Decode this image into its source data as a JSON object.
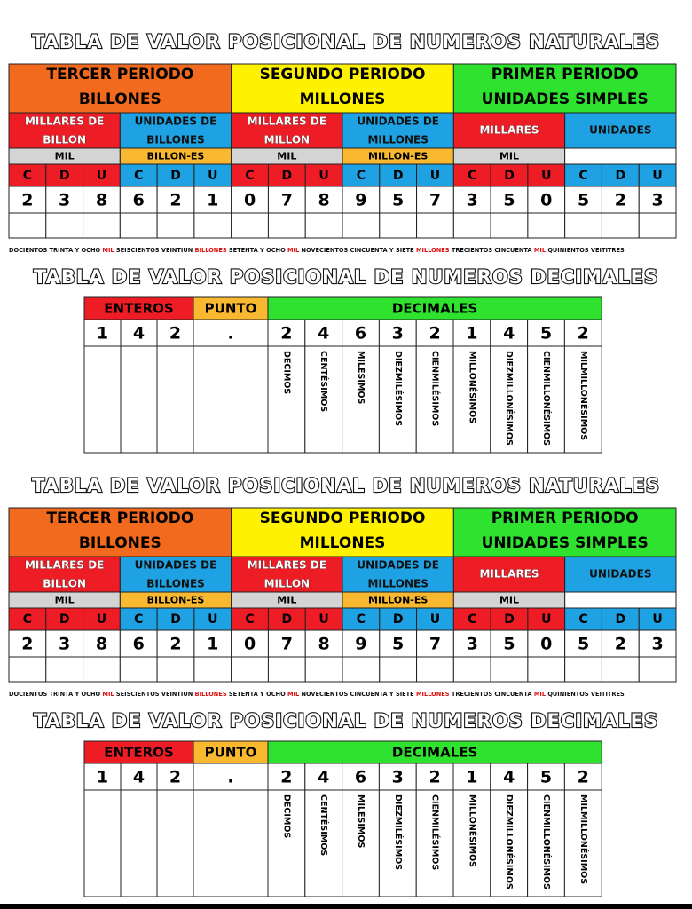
{
  "copies": [
    {
      "natural": {
        "title": "TABLA DE VALOR POSICIONAL DE NUMEROS NATURALES",
        "periods": [
          {
            "name": "TERCER PERIODO",
            "sub": "BILLONES"
          },
          {
            "name": "SEGUNDO PERIODO",
            "sub": "MILLONES"
          },
          {
            "name": "PRIMER PERIODO",
            "sub": "UNIDADES SIMPLES"
          }
        ],
        "classes": [
          [
            "MILLARES DE",
            "BILLON"
          ],
          [
            "UNIDADES DE",
            "BILLONES"
          ],
          [
            "MILLARES DE",
            "MILLON"
          ],
          [
            "UNIDADES DE",
            "MILLONES"
          ],
          [
            "MILLARES"
          ],
          [
            "UNIDADES"
          ]
        ],
        "names": [
          "MIL",
          "BILLON-ES",
          "MIL",
          "MILLON-ES",
          "MIL"
        ],
        "place_letters": [
          "C",
          "D",
          "U",
          "C",
          "D",
          "U",
          "C",
          "D",
          "U",
          "C",
          "D",
          "U",
          "C",
          "D",
          "U",
          "C",
          "D",
          "U"
        ],
        "digits": [
          2,
          3,
          8,
          6,
          2,
          1,
          0,
          7,
          8,
          9,
          5,
          7,
          3,
          5,
          0,
          5,
          2,
          3
        ],
        "sentence": [
          "DOCIENTOS TRINTA Y OCHO ",
          "MIL",
          " SEISCIENTOS VEINTIUN ",
          "BILLONES",
          " SETENTA Y OCHO ",
          "MIL",
          " NOVECIENTOS CINCUENTA Y SIETE ",
          "MILLONES",
          " TRECIENTOS CINCUENTA ",
          "MIL",
          " QUINIENTOS VEITITRES"
        ]
      },
      "decimal": {
        "title": "TABLA DE VALOR POSICIONAL DE NUMEROS DECIMALES",
        "headers": [
          "ENTEROS",
          "PUNTO",
          "DECIMALES"
        ],
        "integer_digits": [
          1,
          4,
          2
        ],
        "point": ".",
        "decimal_digits": [
          2,
          4,
          6,
          3,
          2,
          1,
          4,
          5,
          2
        ],
        "decimal_names": [
          "DECIMOS",
          "CENTÉSIMOS",
          "MILÉSIMOS",
          "DIEZMILÉSIMOS",
          "CIENMILÉSIMOS",
          "MILLONÉSIMOS",
          "DIEZMILLONÉSIMOS",
          "CIENMILLONÉSIMOS",
          "MILMILLONÉSIMOS"
        ]
      }
    },
    {
      "natural": {
        "title": "TABLA DE VALOR POSICIONAL DE NUMEROS NATURALES",
        "periods": [
          {
            "name": "TERCER PERIODO",
            "sub": "BILLONES"
          },
          {
            "name": "SEGUNDO PERIODO",
            "sub": "MILLONES"
          },
          {
            "name": "PRIMER PERIODO",
            "sub": "UNIDADES SIMPLES"
          }
        ],
        "classes": [
          [
            "MILLARES DE",
            "BILLON"
          ],
          [
            "UNIDADES DE",
            "BILLONES"
          ],
          [
            "MILLARES DE",
            "MILLON"
          ],
          [
            "UNIDADES DE",
            "MILLONES"
          ],
          [
            "MILLARES"
          ],
          [
            "UNIDADES"
          ]
        ],
        "names": [
          "MIL",
          "BILLON-ES",
          "MIL",
          "MILLON-ES",
          "MIL"
        ],
        "place_letters": [
          "C",
          "D",
          "U",
          "C",
          "D",
          "U",
          "C",
          "D",
          "U",
          "C",
          "D",
          "U",
          "C",
          "D",
          "U",
          "C",
          "D",
          "U"
        ],
        "digits": [
          2,
          3,
          8,
          6,
          2,
          1,
          0,
          7,
          8,
          9,
          5,
          7,
          3,
          5,
          0,
          5,
          2,
          3
        ],
        "sentence": [
          "DOCIENTOS TRINTA Y OCHO ",
          "MIL",
          " SEISCIENTOS VEINTIUN ",
          "BILLONES",
          " SETENTA Y OCHO ",
          "MIL",
          " NOVECIENTOS CINCUENTA Y SIETE ",
          "MILLONES",
          " TRECIENTOS CINCUENTA ",
          "MIL",
          " QUINIENTOS VEITITRES"
        ]
      },
      "decimal": {
        "title": "TABLA DE VALOR POSICIONAL DE NUMEROS DECIMALES",
        "headers": [
          "ENTEROS",
          "PUNTO",
          "DECIMALES"
        ],
        "integer_digits": [
          1,
          4,
          2
        ],
        "point": ".",
        "decimal_digits": [
          2,
          4,
          6,
          3,
          2,
          1,
          4,
          5,
          2
        ],
        "decimal_names": [
          "DECIMOS",
          "CENTÉSIMOS",
          "MILÉSIMOS",
          "DIEZMILÉSIMOS",
          "CIENMILÉSIMOS",
          "MILLONÉSIMOS",
          "DIEZMILLONÉSIMOS",
          "CIENMILLONÉSIMOS",
          "MILMILLONÉSIMOS"
        ]
      }
    }
  ]
}
